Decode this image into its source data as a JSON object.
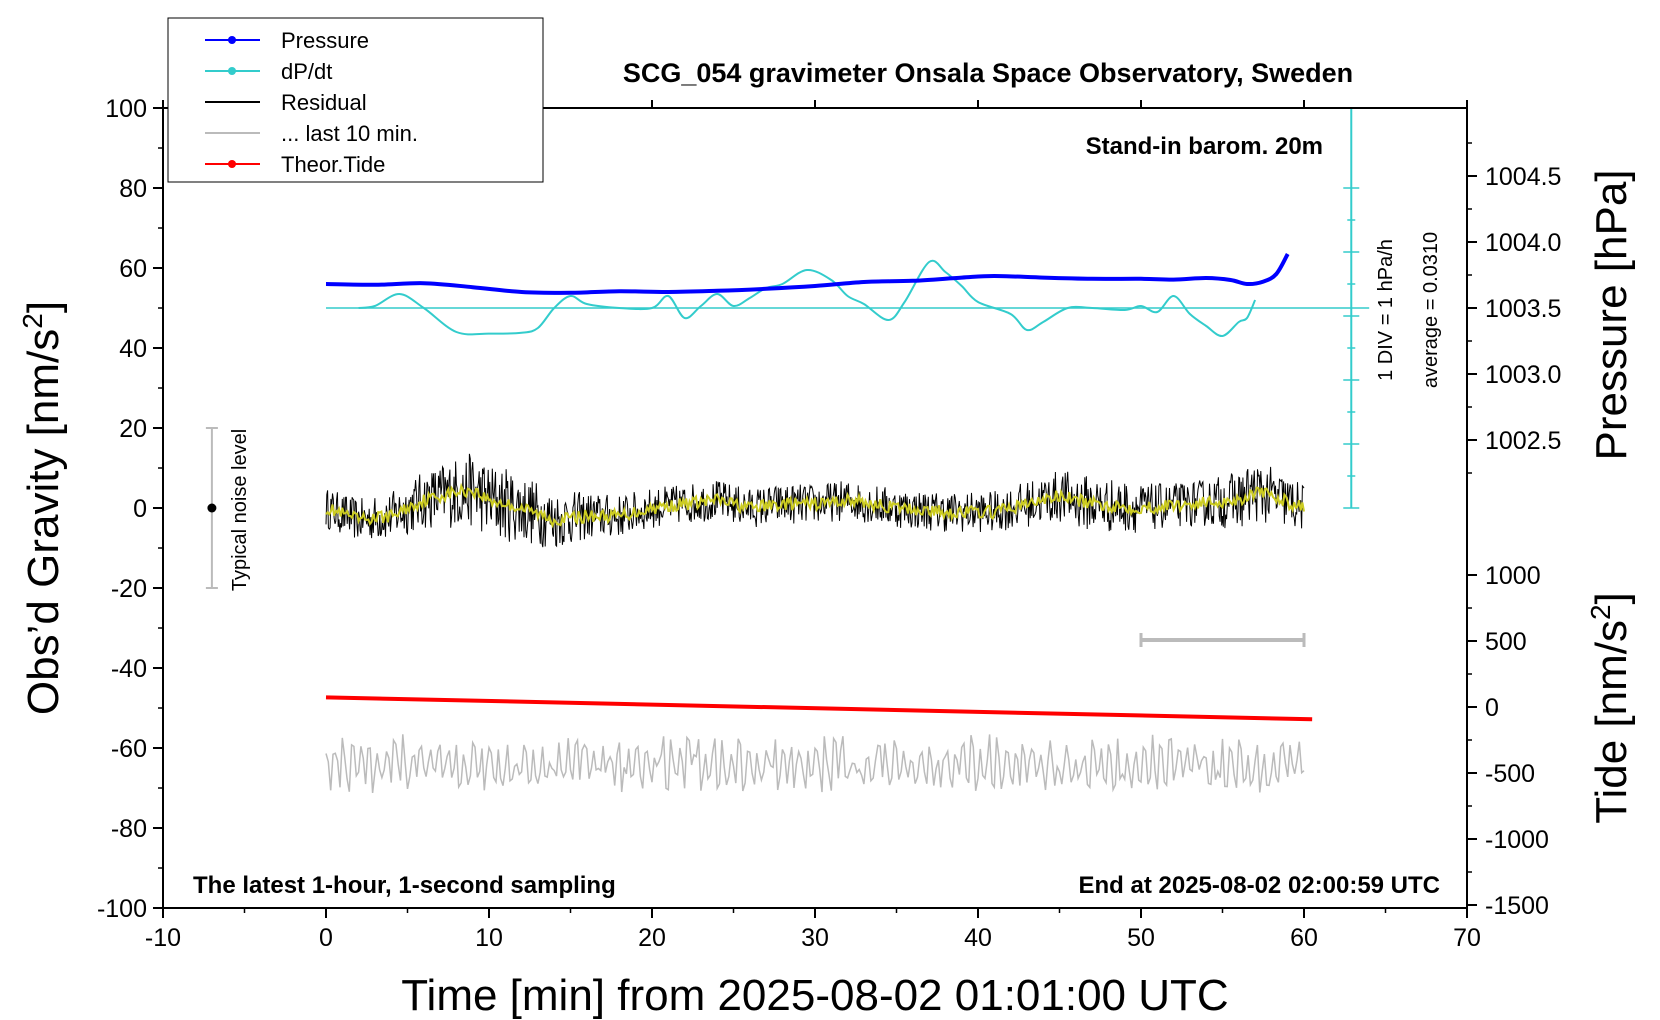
{
  "chart_data": {
    "type": "line",
    "title": "SCG_054 gravimeter Onsala Space Observatory, Sweden",
    "xlabel": "Time [min] from 2025-08-02 01:01:00 UTC",
    "ylabel_left": "Obs’d Gravity [nm/s",
    "ylabel_left_sup": "2",
    "ylabel_left_end": "]",
    "ylabel_right_top": "Pressure [hPa]",
    "ylabel_right_bottom": "Tide [nm/s",
    "ylabel_right_bottom_sup": "2",
    "ylabel_right_bottom_end": "]",
    "xlim": [
      -10,
      70
    ],
    "ylim_left": [
      -100,
      100
    ],
    "x_ticks": [
      "-10",
      "0",
      "10",
      "20",
      "30",
      "40",
      "50",
      "60",
      "70"
    ],
    "x_tick_values": [
      -10,
      0,
      10,
      20,
      30,
      40,
      50,
      60,
      70
    ],
    "y_ticks_left": [
      "-100",
      "-80",
      "-60",
      "-40",
      "-20",
      "0",
      "20",
      "40",
      "60",
      "80",
      "100"
    ],
    "y_tick_values_left": [
      -100,
      -80,
      -60,
      -40,
      -20,
      0,
      20,
      40,
      60,
      80,
      100
    ],
    "pressure_ticks": [
      "1002.5",
      "1003.0",
      "1003.5",
      "1004.0",
      "1004.5"
    ],
    "pressure_tick_values": [
      1002.5,
      1003.0,
      1003.5,
      1004.0,
      1004.5
    ],
    "tide_ticks": [
      "-1500",
      "-1000",
      "-500",
      "0",
      "500",
      "1000"
    ],
    "tide_tick_values": [
      -1500,
      -1000,
      -500,
      0,
      500,
      1000
    ],
    "legend": [
      {
        "label": "Pressure",
        "color": "#0000ff",
        "marker": true
      },
      {
        "label": "dP/dt",
        "color": "#33cccc",
        "marker": true
      },
      {
        "label": "Residual",
        "color": "#000000",
        "marker": false
      },
      {
        "label": "... last 10 min.",
        "color": "#bbbbbb",
        "marker": false
      },
      {
        "label": "Theor.Tide",
        "color": "#ff0000",
        "marker": true
      }
    ],
    "annotations": {
      "stand_in": "Stand-in barom. 20m",
      "div_label": "1 DIV = 1 hPa/h",
      "average_label": "average = 0.0310",
      "noise_label": "Typical noise level",
      "latest": "The latest 1-hour, 1-second sampling",
      "end_at": "End at 2025-08-02 02:00:59 UTC"
    },
    "noise_bar": {
      "x": -7,
      "y_low": -20,
      "y_high": 20,
      "center": 0
    },
    "ten_min_bar": {
      "x_start": 50,
      "x_end": 60,
      "y": -33
    },
    "series": [
      {
        "name": "Pressure",
        "color": "#0000ff",
        "x": [
          0,
          3,
          6,
          9,
          12,
          15,
          18,
          21,
          24,
          27,
          30,
          33,
          36,
          39,
          41,
          44,
          47,
          50,
          52,
          54,
          55.5,
          56.5,
          57.5,
          58.3,
          59
        ],
        "values": [
          56,
          55.8,
          56.2,
          55.2,
          54,
          53.8,
          54.2,
          54,
          54.3,
          54.8,
          55.5,
          56.5,
          56.8,
          57.6,
          58,
          57.6,
          57.3,
          57.3,
          57.1,
          57.5,
          57,
          56,
          56.6,
          58.5,
          63.5
        ]
      },
      {
        "name": "dP/dt",
        "color": "#33cccc",
        "baseline": 50,
        "x": [
          2,
          3,
          4.5,
          6,
          8,
          10,
          12,
          13,
          14,
          15,
          16,
          18,
          20,
          21,
          22,
          23,
          24,
          25,
          26,
          27,
          28,
          29.5,
          31,
          32,
          33,
          34.5,
          35.5,
          37,
          38,
          39,
          40,
          42,
          43,
          44,
          45.5,
          47,
          49,
          50,
          51,
          52,
          53,
          54,
          55,
          56,
          56.5,
          57
        ],
        "values": [
          50,
          50.5,
          53.5,
          50,
          44,
          43.6,
          43.8,
          45,
          50,
          53,
          51,
          50,
          50,
          53,
          47.5,
          50.5,
          53.5,
          50.5,
          52.5,
          55,
          56,
          59.5,
          57,
          53,
          51,
          47,
          51.5,
          61.5,
          59,
          55.5,
          51.5,
          48.5,
          44.5,
          46.5,
          50,
          50,
          49.5,
          50.5,
          49,
          53,
          48.5,
          45.5,
          43,
          46.5,
          47.5,
          52
        ]
      },
      {
        "name": "Residual",
        "color": "#000000",
        "x_range": [
          0,
          60
        ],
        "typical_amplitude": 10,
        "values_summary": "1-second noisy record, roughly -15 to +20 nm/s2 about 0"
      },
      {
        "name": "Residual (smoothed)",
        "color": "#cccc22",
        "x": [
          0,
          2,
          4,
          6,
          8,
          9,
          10,
          12,
          14,
          16,
          18,
          20,
          22,
          24,
          26,
          28,
          30,
          32,
          35,
          38,
          41,
          44,
          45,
          47,
          50,
          53,
          56,
          57,
          58,
          60
        ],
        "values": [
          0,
          -3,
          -2,
          2,
          4,
          4.5,
          2,
          0,
          -3,
          -2,
          -2,
          0,
          1,
          2,
          0,
          1,
          1,
          2,
          0,
          -1,
          -1,
          2,
          3,
          1,
          0,
          1,
          2,
          4,
          3,
          0
        ]
      },
      {
        "name": "... last 10 min.",
        "color": "#bbbbbb",
        "x_range": [
          0,
          60
        ],
        "center": -64,
        "typical_amplitude": 5,
        "values_summary": "oscillating trace roughly between -71 and -54 nm/s2"
      },
      {
        "name": "Theor.Tide",
        "color": "#ff0000",
        "x": [
          0,
          60.5
        ],
        "tide_values": [
          73,
          -93
        ]
      }
    ]
  }
}
